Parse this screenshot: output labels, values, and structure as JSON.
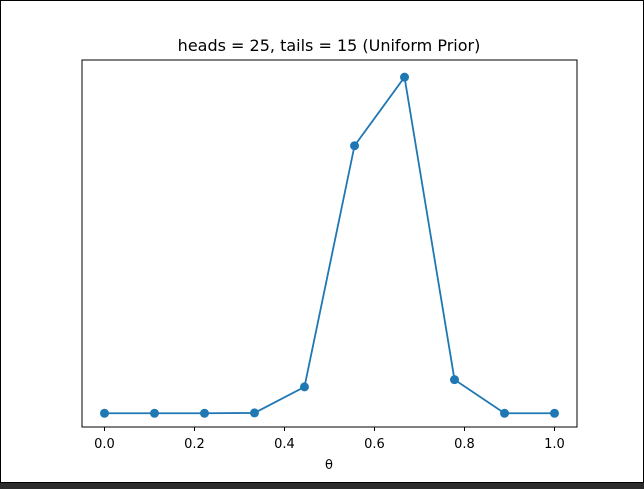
{
  "chart_data": {
    "type": "line",
    "title": "heads = 25, tails = 15 (Uniform Prior)",
    "xlabel": "θ",
    "ylabel": "",
    "xlim": [
      -0.05,
      1.05
    ],
    "ylim": [
      -0.04,
      1.03
    ],
    "x_ticks": [
      0.0,
      0.2,
      0.4,
      0.6,
      0.8,
      1.0
    ],
    "x_tick_labels": [
      "0.0",
      "0.2",
      "0.4",
      "0.6",
      "0.8",
      "1.0"
    ],
    "y_ticks_visible": false,
    "grid": false,
    "marker": "circle",
    "color": "#1f77b4",
    "series": [
      {
        "x": [
          0.0,
          0.1111,
          0.2222,
          0.3333,
          0.4444,
          0.5556,
          0.6667,
          0.7778,
          0.8889,
          1.0
        ],
        "values": [
          0.0,
          0.0,
          0.0,
          0.001,
          0.077,
          0.78,
          0.98,
          0.098,
          0.0,
          0.0
        ]
      }
    ]
  }
}
